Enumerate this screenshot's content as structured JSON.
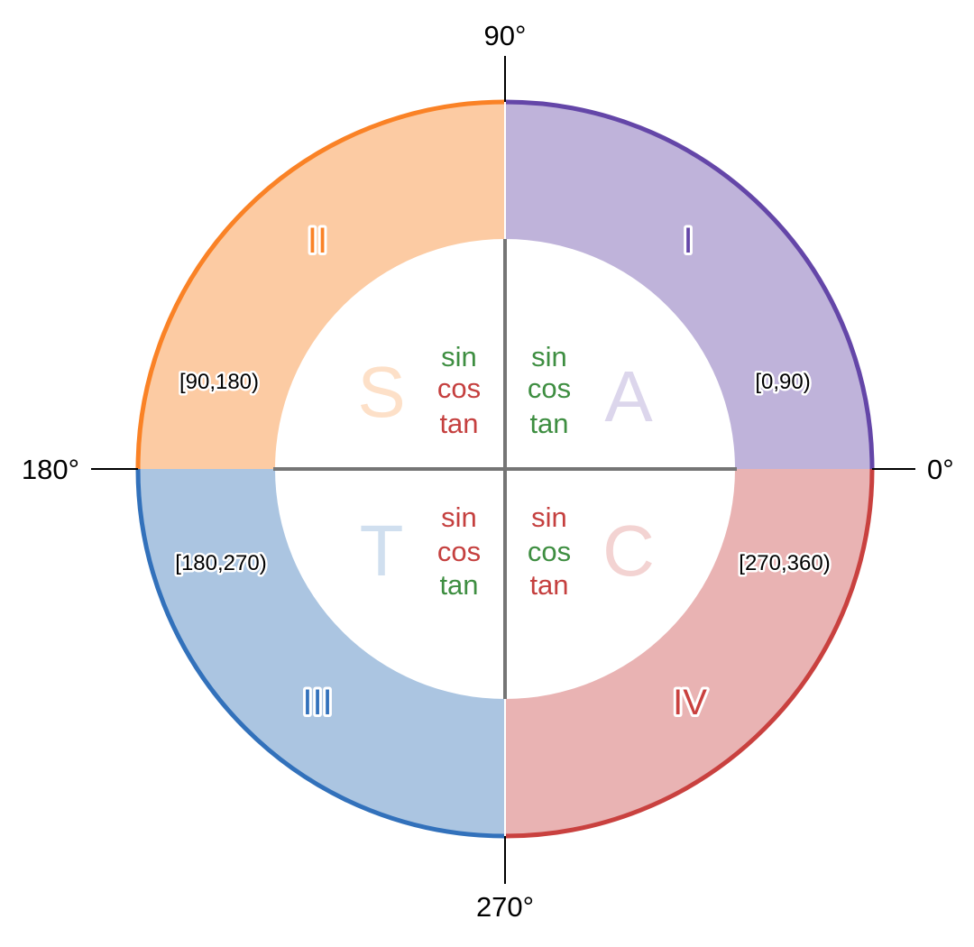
{
  "axes": {
    "deg_0": "0°",
    "deg_90": "90°",
    "deg_180": "180°",
    "deg_270": "270°",
    "axis_color": "#000000",
    "inner_axis_color": "#757575"
  },
  "colors": {
    "positive": "#3e8e41",
    "negative": "#c5403f"
  },
  "quadrants": {
    "q1": {
      "numeral": "I",
      "range": "[0,90)",
      "letter": "A",
      "fill": "#bfb3da",
      "border": "#6446a8",
      "letter_color": "#dcd6ec",
      "functions": [
        {
          "name": "sin",
          "sign": "positive"
        },
        {
          "name": "cos",
          "sign": "positive"
        },
        {
          "name": "tan",
          "sign": "positive"
        }
      ]
    },
    "q2": {
      "numeral": "II",
      "range": "[90,180)",
      "letter": "S",
      "fill": "#fccba3",
      "border": "#fa8226",
      "letter_color": "#fde0c8",
      "functions": [
        {
          "name": "sin",
          "sign": "positive"
        },
        {
          "name": "cos",
          "sign": "negative"
        },
        {
          "name": "tan",
          "sign": "negative"
        }
      ]
    },
    "q3": {
      "numeral": "III",
      "range": "[180,270)",
      "letter": "T",
      "fill": "#abc5e1",
      "border": "#3271bb",
      "letter_color": "#d0dfef",
      "functions": [
        {
          "name": "sin",
          "sign": "negative"
        },
        {
          "name": "cos",
          "sign": "negative"
        },
        {
          "name": "tan",
          "sign": "positive"
        }
      ]
    },
    "q4": {
      "numeral": "IV",
      "range": "[270,360)",
      "letter": "C",
      "fill": "#e9b3b3",
      "border": "#c9413f",
      "letter_color": "#f3d3d2",
      "functions": [
        {
          "name": "sin",
          "sign": "negative"
        },
        {
          "name": "cos",
          "sign": "positive"
        },
        {
          "name": "tan",
          "sign": "negative"
        }
      ]
    }
  }
}
